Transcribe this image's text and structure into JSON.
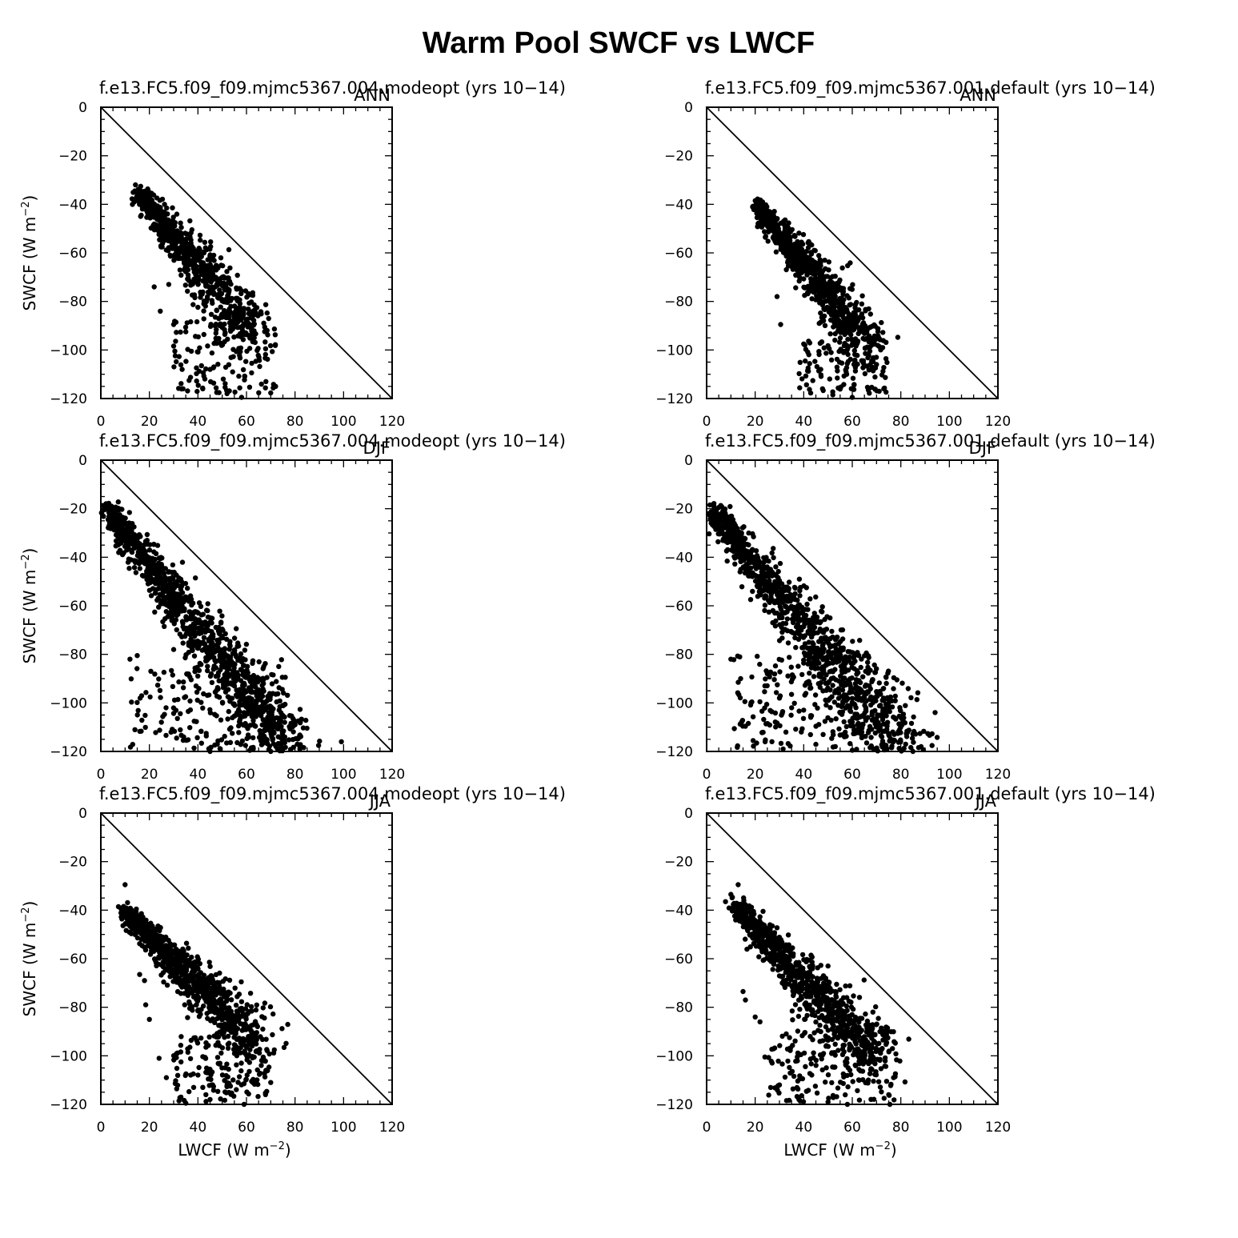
{
  "title": "Warm Pool SWCF vs LWCF",
  "axis_labels": {
    "y_main": "SWCF  (W  m",
    "y_unit_exponent": "−2",
    "y_close": ")",
    "x_main": "LWCF  (W  m",
    "x_unit_exponent": "−2",
    "x_close": ")"
  },
  "chart_data": [
    {
      "type": "scatter",
      "title": "f.e13.FC5.f09_f09.mjmc5367.004.modeopt (yrs 10−14)",
      "season": "ANN",
      "xlim": [
        0,
        120
      ],
      "ylim": [
        -120,
        0
      ],
      "xticks": [
        0,
        20,
        40,
        60,
        80,
        100,
        120
      ],
      "yticks": [
        0,
        -20,
        -40,
        -60,
        -80,
        -100,
        -120
      ],
      "reference_line": "y = -x",
      "cloud": {
        "points": 950,
        "seed": 11,
        "x0": 16,
        "y0": -35,
        "x1": 62,
        "y1": -88,
        "spread": 3.0,
        "yscale": 1.1,
        "scatter_frac": 0.12,
        "outlier": {
          "xmin": 30,
          "xmax": 72,
          "ymin": -118,
          "ymax": -88
        }
      },
      "points": [
        [
          14.0,
          -34.5
        ],
        [
          16.0,
          -35.2
        ],
        [
          24.5,
          -84.0
        ],
        [
          30.0,
          -89.5
        ],
        [
          35.0,
          -92.5
        ],
        [
          45.0,
          -108.0
        ],
        [
          52.0,
          -118.0
        ],
        [
          58.0,
          -119.5
        ],
        [
          72.0,
          -115.0
        ],
        [
          68.0,
          -113.0
        ],
        [
          61.0,
          -85.0
        ],
        [
          46.0,
          -62.0
        ],
        [
          22.0,
          -74.0
        ],
        [
          28.0,
          -73.0
        ]
      ]
    },
    {
      "type": "scatter",
      "title": "f.e13.FC5.f09_f09.mjmc5367.001.default (yrs 10−14)",
      "season": "ANN",
      "xlim": [
        0,
        120
      ],
      "ylim": [
        -120,
        0
      ],
      "xticks": [
        0,
        20,
        40,
        60,
        80,
        100,
        120
      ],
      "yticks": [
        0,
        -20,
        -40,
        -60,
        -80,
        -100,
        -120
      ],
      "reference_line": "y = -x",
      "cloud": {
        "points": 950,
        "seed": 23,
        "x0": 21,
        "y0": -40,
        "x1": 66,
        "y1": -94,
        "spread": 2.8,
        "yscale": 1.1,
        "scatter_frac": 0.11,
        "outlier": {
          "xmin": 38,
          "xmax": 74,
          "ymin": -118,
          "ymax": -95
        }
      },
      "points": [
        [
          20.0,
          -38.5
        ],
        [
          21.0,
          -37.8
        ],
        [
          19.0,
          -41.0
        ],
        [
          30.5,
          -89.5
        ],
        [
          40.0,
          -97.5
        ],
        [
          47.0,
          -108.0
        ],
        [
          52.0,
          -118.5
        ],
        [
          60.0,
          -119.5
        ],
        [
          73.0,
          -116.0
        ],
        [
          70.0,
          -106.0
        ],
        [
          67.0,
          -95.0
        ],
        [
          29.0,
          -78.0
        ],
        [
          55.0,
          -75.0
        ]
      ]
    },
    {
      "type": "scatter",
      "title": "f.e13.FC5.f09_f09.mjmc5367.004.modeopt (yrs 10−14)",
      "season": "DJF",
      "xlim": [
        0,
        120
      ],
      "ylim": [
        -120,
        0
      ],
      "xticks": [
        0,
        20,
        40,
        60,
        80,
        100,
        120
      ],
      "yticks": [
        0,
        -20,
        -40,
        -60,
        -80,
        -100,
        -120
      ],
      "reference_line": "y = -x",
      "cloud": {
        "points": 1300,
        "seed": 37,
        "x0": 3,
        "y0": -20,
        "x1": 80,
        "y1": -117,
        "spread": 3.6,
        "yscale": 1.05,
        "scatter_frac": 0.14,
        "outlier": {
          "xmin": 12,
          "xmax": 76,
          "ymin": -119,
          "ymax": -85
        }
      },
      "points": [
        [
          3.0,
          -19.5
        ],
        [
          4.0,
          -20.0
        ],
        [
          12.0,
          -82.0
        ],
        [
          15.0,
          -80.5
        ],
        [
          36.0,
          -103.5
        ],
        [
          45.0,
          -120.0
        ],
        [
          48.0,
          -117.0
        ],
        [
          62.0,
          -118.5
        ],
        [
          70.0,
          -120.0
        ],
        [
          82.0,
          -118.0
        ],
        [
          80.0,
          -109.0
        ],
        [
          75.0,
          -101.0
        ],
        [
          63.0,
          -90.0
        ],
        [
          67.0,
          -92.0
        ],
        [
          30.0,
          -78.0
        ]
      ]
    },
    {
      "type": "scatter",
      "title": "f.e13.FC5.f09_f09.mjmc5367.001.default (yrs 10−14)",
      "season": "DJF",
      "xlim": [
        0,
        120
      ],
      "ylim": [
        -120,
        0
      ],
      "xticks": [
        0,
        20,
        40,
        60,
        80,
        100,
        120
      ],
      "yticks": [
        0,
        -20,
        -40,
        -60,
        -80,
        -100,
        -120
      ],
      "reference_line": "y = -x",
      "cloud": {
        "points": 1300,
        "seed": 53,
        "x0": 3,
        "y0": -20,
        "x1": 82,
        "y1": -117,
        "spread": 4.2,
        "yscale": 1.0,
        "scatter_frac": 0.15,
        "outlier": {
          "xmin": 10,
          "xmax": 78,
          "ymin": -119,
          "ymax": -80
        }
      },
      "points": [
        [
          3.0,
          -19.0
        ],
        [
          5.0,
          -19.5
        ],
        [
          10.0,
          -82.0
        ],
        [
          14.0,
          -90.0
        ],
        [
          24.0,
          -93.0
        ],
        [
          30.0,
          -98.0
        ],
        [
          35.0,
          -102.0
        ],
        [
          40.0,
          -103.0
        ],
        [
          48.0,
          -113.0
        ],
        [
          53.0,
          -118.0
        ],
        [
          60.0,
          -119.5
        ],
        [
          82.0,
          -117.0
        ],
        [
          85.0,
          -120.0
        ],
        [
          25.0,
          -88.0
        ]
      ]
    },
    {
      "type": "scatter",
      "title": "f.e13.FC5.f09_f09.mjmc5367.004.modeopt (yrs 10−14)",
      "season": "JJA",
      "xlim": [
        0,
        120
      ],
      "ylim": [
        -120,
        0
      ],
      "xticks": [
        0,
        20,
        40,
        60,
        80,
        100,
        120
      ],
      "yticks": [
        0,
        -20,
        -40,
        -60,
        -80,
        -100,
        -120
      ],
      "reference_line": "y = -x",
      "cloud": {
        "points": 1050,
        "seed": 71,
        "x0": 10,
        "y0": -40,
        "x1": 65,
        "y1": -92,
        "spread": 3.0,
        "yscale": 1.05,
        "scatter_frac": 0.14,
        "outlier": {
          "xmin": 30,
          "xmax": 70,
          "ymin": -119,
          "ymax": -92
        }
      },
      "points": [
        [
          10.0,
          -29.5
        ],
        [
          10.0,
          -42.0
        ],
        [
          16.0,
          -66.5
        ],
        [
          18.0,
          -69.0
        ],
        [
          18.5,
          -79.0
        ],
        [
          20.0,
          -85.0
        ],
        [
          24.0,
          -101.0
        ],
        [
          27.0,
          -109.0
        ],
        [
          33.0,
          -117.0
        ],
        [
          35.0,
          -119.5
        ],
        [
          45.0,
          -118.0
        ],
        [
          59.0,
          -120.0
        ],
        [
          70.0,
          -111.0
        ],
        [
          68.0,
          -106.0
        ],
        [
          40.0,
          -81.5
        ]
      ]
    },
    {
      "type": "scatter",
      "title": "f.e13.FC5.f09_f09.mjmc5367.001.default (yrs 10−14)",
      "season": "JJA",
      "xlim": [
        0,
        120
      ],
      "ylim": [
        -120,
        0
      ],
      "xticks": [
        0,
        20,
        40,
        60,
        80,
        100,
        120
      ],
      "yticks": [
        0,
        -20,
        -40,
        -60,
        -80,
        -100,
        -120
      ],
      "reference_line": "y = -x",
      "cloud": {
        "points": 1050,
        "seed": 89,
        "x0": 12,
        "y0": -37,
        "x1": 70,
        "y1": -98,
        "spread": 3.4,
        "yscale": 1.05,
        "scatter_frac": 0.15,
        "outlier": {
          "xmin": 25,
          "xmax": 78,
          "ymin": -119,
          "ymax": -88
        }
      },
      "points": [
        [
          13.0,
          -29.5
        ],
        [
          10.0,
          -33.5
        ],
        [
          15.0,
          -73.5
        ],
        [
          16.0,
          -77.0
        ],
        [
          20.0,
          -84.0
        ],
        [
          22.0,
          -86.0
        ],
        [
          24.0,
          -100.5
        ],
        [
          27.0,
          -103.0
        ],
        [
          30.0,
          -112.0
        ],
        [
          38.0,
          -118.0
        ],
        [
          50.0,
          -119.0
        ],
        [
          58.0,
          -120.0
        ],
        [
          75.0,
          -116.0
        ],
        [
          77.0,
          -109.0
        ],
        [
          50.0,
          -63.0
        ]
      ]
    }
  ]
}
